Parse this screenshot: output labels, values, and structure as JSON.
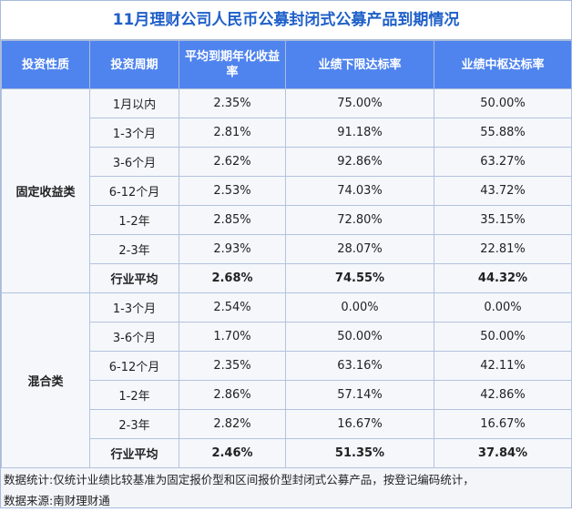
{
  "title": "11月理财公司人民币公募封闭式公募产品到期情况",
  "headers": [
    "投资性质",
    "投资周期",
    "平均到期年化收益率",
    "业绩下限达标率",
    "业绩中枢达标率"
  ],
  "groups": [
    {
      "name": "固定收益类",
      "rows": [
        [
          "1月以内",
          "2.35%",
          "75.00%",
          "50.00%"
        ],
        [
          "1-3个月",
          "2.81%",
          "91.18%",
          "55.88%"
        ],
        [
          "3-6个月",
          "2.62%",
          "92.86%",
          "63.27%"
        ],
        [
          "6-12个月",
          "2.53%",
          "74.03%",
          "43.72%"
        ],
        [
          "1-2年",
          "2.85%",
          "72.80%",
          "35.15%"
        ],
        [
          "2-3年",
          "2.93%",
          "28.07%",
          "22.81%"
        ],
        [
          "行业平均",
          "2.68%",
          "74.55%",
          "44.32%"
        ]
      ]
    },
    {
      "name": "混合类",
      "rows": [
        [
          "1-3个月",
          "2.54%",
          "0.00%",
          "0.00%"
        ],
        [
          "3-6个月",
          "1.70%",
          "50.00%",
          "50.00%"
        ],
        [
          "6-12个月",
          "2.35%",
          "63.16%",
          "42.11%"
        ],
        [
          "1-2年",
          "2.86%",
          "57.14%",
          "42.86%"
        ],
        [
          "2-3年",
          "2.82%",
          "16.67%",
          "16.67%"
        ],
        [
          "行业平均",
          "2.46%",
          "51.35%",
          "37.84%"
        ]
      ]
    }
  ],
  "footnotes": [
    "数据统计:仅统计业绩比较基准为固定报价型和区间报价型封闭式公募产品，按登记编码统计，",
    "数据来源:南财理财通"
  ]
}
